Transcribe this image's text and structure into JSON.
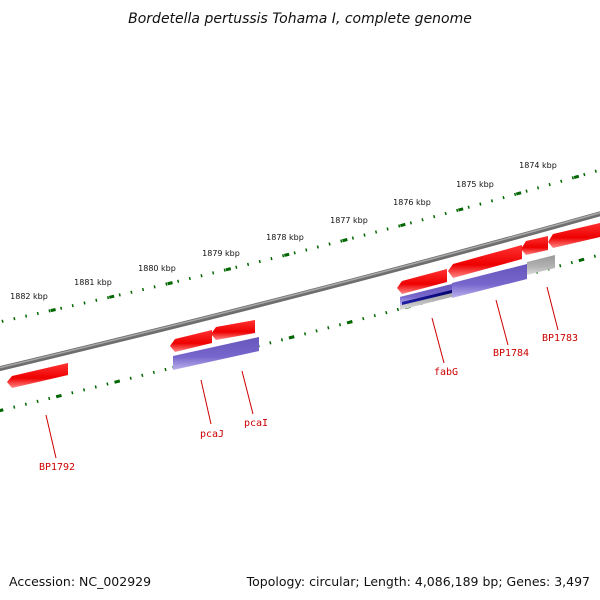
{
  "title": "Bordetella pertussis Tohama I, complete genome",
  "footer": {
    "accession": "Accession: NC_002929",
    "summary": "Topology: circular; Length: 4,086,189 bp; Genes: 3,497"
  },
  "scale_labels": [
    "1874 kbp",
    "1875 kbp",
    "1876 kbp",
    "1877 kbp",
    "1878 kbp",
    "1879 kbp",
    "1880 kbp",
    "1881 kbp",
    "1882 kbp"
  ],
  "gene_labels": [
    "BP1783",
    "BP1784",
    "fabG",
    "pcaI",
    "pcaJ",
    "BP1792"
  ],
  "colors": {
    "backbone": "#7a7a7a",
    "forward_cds": "#ee0000",
    "reverse_cds_feature": "#7766cc",
    "dark_feature": "#000077",
    "gray_feature": "#b3b3b3",
    "tick": "#006600",
    "label": "#cc0000"
  }
}
